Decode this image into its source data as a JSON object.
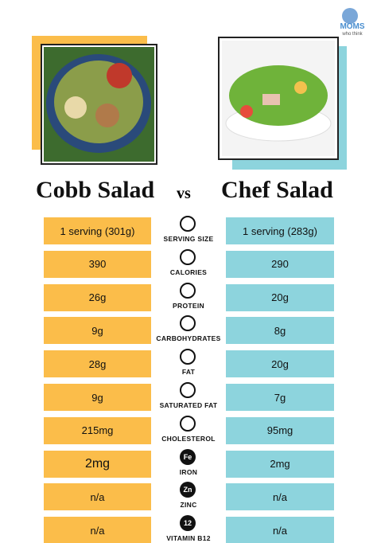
{
  "logo": {
    "name": "MOMS",
    "tagline": "who think"
  },
  "left": {
    "title": "Cobb Salad"
  },
  "versus": "vs",
  "right": {
    "title": "Chef Salad"
  },
  "rows": [
    {
      "label": "SERVING SIZE",
      "left": "1 serving (301g)",
      "right": "1 serving (283g)"
    },
    {
      "label": "CALORIES",
      "left": "390",
      "right": "290"
    },
    {
      "label": "PROTEIN",
      "left": "26g",
      "right": "20g"
    },
    {
      "label": "CARBOHYDRATES",
      "left": "9g",
      "right": "8g"
    },
    {
      "label": "FAT",
      "left": "28g",
      "right": "20g"
    },
    {
      "label": "SATURATED FAT",
      "left": "9g",
      "right": "7g"
    },
    {
      "label": "CHOLESTEROL",
      "left": "215mg",
      "right": "95mg"
    },
    {
      "label": "IRON",
      "left": "2mg",
      "right": "2mg",
      "icon": "Fe"
    },
    {
      "label": "ZINC",
      "left": "n/a",
      "right": "n/a",
      "icon": "Zn"
    },
    {
      "label": "VITAMIN B12",
      "left": "n/a",
      "right": "n/a",
      "icon": "12"
    }
  ]
}
